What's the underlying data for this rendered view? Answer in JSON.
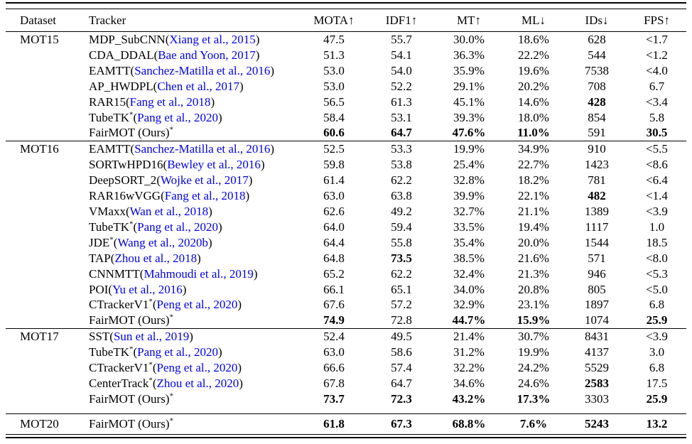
{
  "table": {
    "caption_semantics": "Multi-object tracking benchmark results table",
    "citation_color": "#0000EE",
    "columns": [
      {
        "key": "dataset",
        "label": "Dataset"
      },
      {
        "key": "tracker",
        "label": "Tracker"
      },
      {
        "key": "mota",
        "label": "MOTA↑"
      },
      {
        "key": "idf1",
        "label": "IDF1↑"
      },
      {
        "key": "mt",
        "label": "MT↑"
      },
      {
        "key": "ml",
        "label": "ML↓"
      },
      {
        "key": "ids",
        "label": "IDs↓"
      },
      {
        "key": "fps",
        "label": "FPS↑"
      }
    ],
    "sections": [
      {
        "dataset": "MOT15",
        "rows": [
          {
            "name": "MDP_SubCNN",
            "star": false,
            "cite": "Xiang et al., 2015",
            "values": [
              "47.5",
              "55.7",
              "30.0%",
              "18.6%",
              "628",
              "<1.7"
            ],
            "bold": [
              false,
              false,
              false,
              false,
              false,
              false
            ]
          },
          {
            "name": "CDA_DDAL",
            "star": false,
            "cite": "Bae and Yoon, 2017",
            "values": [
              "51.3",
              "54.1",
              "36.3%",
              "22.2%",
              "544",
              "<1.2"
            ],
            "bold": [
              false,
              false,
              false,
              false,
              false,
              false
            ]
          },
          {
            "name": "EAMTT",
            "star": false,
            "cite": "Sanchez-Matilla et al., 2016",
            "values": [
              "53.0",
              "54.0",
              "35.9%",
              "19.6%",
              "7538",
              "<4.0"
            ],
            "bold": [
              false,
              false,
              false,
              false,
              false,
              false
            ]
          },
          {
            "name": "AP_HWDPL",
            "star": false,
            "cite": "Chen et al., 2017",
            "values": [
              "53.0",
              "52.2",
              "29.1%",
              "20.2%",
              "708",
              "6.7"
            ],
            "bold": [
              false,
              false,
              false,
              false,
              false,
              false
            ]
          },
          {
            "name": "RAR15",
            "star": false,
            "cite": "Fang et al., 2018",
            "values": [
              "56.5",
              "61.3",
              "45.1%",
              "14.6%",
              "428",
              "<3.4"
            ],
            "bold": [
              false,
              false,
              false,
              false,
              true,
              false
            ]
          },
          {
            "name": "TubeTK",
            "star": true,
            "cite": "Pang et al., 2020",
            "values": [
              "58.4",
              "53.1",
              "39.3%",
              "18.0%",
              "854",
              "5.8"
            ],
            "bold": [
              false,
              false,
              false,
              false,
              false,
              false
            ]
          },
          {
            "name": "FairMOT (Ours)",
            "star": true,
            "cite": null,
            "values": [
              "60.6",
              "64.7",
              "47.6%",
              "11.0%",
              "591",
              "30.5"
            ],
            "bold": [
              true,
              true,
              true,
              true,
              false,
              true
            ]
          }
        ]
      },
      {
        "dataset": "MOT16",
        "rows": [
          {
            "name": "EAMTT",
            "star": false,
            "cite": "Sanchez-Matilla et al., 2016",
            "values": [
              "52.5",
              "53.3",
              "19.9%",
              "34.9%",
              "910",
              "<5.5"
            ],
            "bold": [
              false,
              false,
              false,
              false,
              false,
              false
            ]
          },
          {
            "name": "SORTwHPD16",
            "star": false,
            "cite": "Bewley et al., 2016",
            "values": [
              "59.8",
              "53.8",
              "25.4%",
              "22.7%",
              "1423",
              "<8.6"
            ],
            "bold": [
              false,
              false,
              false,
              false,
              false,
              false
            ]
          },
          {
            "name": "DeepSORT_2",
            "star": false,
            "cite": "Wojke et al., 2017",
            "values": [
              "61.4",
              "62.2",
              "32.8%",
              "18.2%",
              "781",
              "<6.4"
            ],
            "bold": [
              false,
              false,
              false,
              false,
              false,
              false
            ]
          },
          {
            "name": "RAR16wVGG",
            "star": false,
            "cite": "Fang et al., 2018",
            "values": [
              "63.0",
              "63.8",
              "39.9%",
              "22.1%",
              "482",
              "<1.4"
            ],
            "bold": [
              false,
              false,
              false,
              false,
              true,
              false
            ]
          },
          {
            "name": "VMaxx",
            "star": false,
            "cite": "Wan et al., 2018",
            "values": [
              "62.6",
              "49.2",
              "32.7%",
              "21.1%",
              "1389",
              "<3.9"
            ],
            "bold": [
              false,
              false,
              false,
              false,
              false,
              false
            ]
          },
          {
            "name": "TubeTK",
            "star": true,
            "cite": "Pang et al., 2020",
            "values": [
              "64.0",
              "59.4",
              "33.5%",
              "19.4%",
              "1117",
              "1.0"
            ],
            "bold": [
              false,
              false,
              false,
              false,
              false,
              false
            ]
          },
          {
            "name": "JDE",
            "star": true,
            "cite": "Wang et al., 2020b",
            "values": [
              "64.4",
              "55.8",
              "35.4%",
              "20.0%",
              "1544",
              "18.5"
            ],
            "bold": [
              false,
              false,
              false,
              false,
              false,
              false
            ]
          },
          {
            "name": "TAP",
            "star": false,
            "cite": "Zhou et al., 2018",
            "values": [
              "64.8",
              "73.5",
              "38.5%",
              "21.6%",
              "571",
              "<8.0"
            ],
            "bold": [
              false,
              true,
              false,
              false,
              false,
              false
            ]
          },
          {
            "name": "CNNMTT",
            "star": false,
            "cite": "Mahmoudi et al., 2019",
            "values": [
              "65.2",
              "62.2",
              "32.4%",
              "21.3%",
              "946",
              "<5.3"
            ],
            "bold": [
              false,
              false,
              false,
              false,
              false,
              false
            ]
          },
          {
            "name": "POI",
            "star": false,
            "cite": "Yu et al., 2016",
            "values": [
              "66.1",
              "65.1",
              "34.0%",
              "20.8%",
              "805",
              "<5.0"
            ],
            "bold": [
              false,
              false,
              false,
              false,
              false,
              false
            ]
          },
          {
            "name": "CTrackerV1",
            "star": true,
            "cite": "Peng et al., 2020",
            "values": [
              "67.6",
              "57.2",
              "32.9%",
              "23.1%",
              "1897",
              "6.8"
            ],
            "bold": [
              false,
              false,
              false,
              false,
              false,
              false
            ]
          },
          {
            "name": "FairMOT (Ours)",
            "star": true,
            "cite": null,
            "values": [
              "74.9",
              "72.8",
              "44.7%",
              "15.9%",
              "1074",
              "25.9"
            ],
            "bold": [
              true,
              false,
              true,
              true,
              false,
              true
            ]
          }
        ]
      },
      {
        "dataset": "MOT17",
        "rows": [
          {
            "name": "SST",
            "star": false,
            "cite": "Sun et al., 2019",
            "values": [
              "52.4",
              "49.5",
              "21.4%",
              "30.7%",
              "8431",
              "<3.9"
            ],
            "bold": [
              false,
              false,
              false,
              false,
              false,
              false
            ]
          },
          {
            "name": "TubeTK",
            "star": true,
            "cite": "Pang et al., 2020",
            "values": [
              "63.0",
              "58.6",
              "31.2%",
              "19.9%",
              "4137",
              "3.0"
            ],
            "bold": [
              false,
              false,
              false,
              false,
              false,
              false
            ]
          },
          {
            "name": "CTrackerV1",
            "star": true,
            "cite": "Peng et al., 2020",
            "values": [
              "66.6",
              "57.4",
              "32.2%",
              "24.2%",
              "5529",
              "6.8"
            ],
            "bold": [
              false,
              false,
              false,
              false,
              false,
              false
            ]
          },
          {
            "name": "CenterTrack",
            "star": true,
            "cite": "Zhou et al., 2020",
            "values": [
              "67.8",
              "64.7",
              "34.6%",
              "24.6%",
              "2583",
              "17.5"
            ],
            "bold": [
              false,
              false,
              false,
              false,
              true,
              false
            ]
          },
          {
            "name": "FairMOT (Ours)",
            "star": true,
            "cite": null,
            "values": [
              "73.7",
              "72.3",
              "43.2%",
              "17.3%",
              "3303",
              "25.9"
            ],
            "bold": [
              true,
              true,
              true,
              true,
              false,
              true
            ]
          }
        ]
      },
      {
        "dataset": "MOT20",
        "rows": [
          {
            "name": "FairMOT (Ours)",
            "star": true,
            "cite": null,
            "values": [
              "61.8",
              "67.3",
              "68.8%",
              "7.6%",
              "5243",
              "13.2"
            ],
            "bold": [
              true,
              true,
              true,
              true,
              true,
              true
            ]
          }
        ]
      }
    ],
    "glyphs": {
      "up_arrow": "↑",
      "down_arrow": "↓",
      "star": "*",
      "open_paren": "(",
      "close_paren": ")"
    }
  }
}
